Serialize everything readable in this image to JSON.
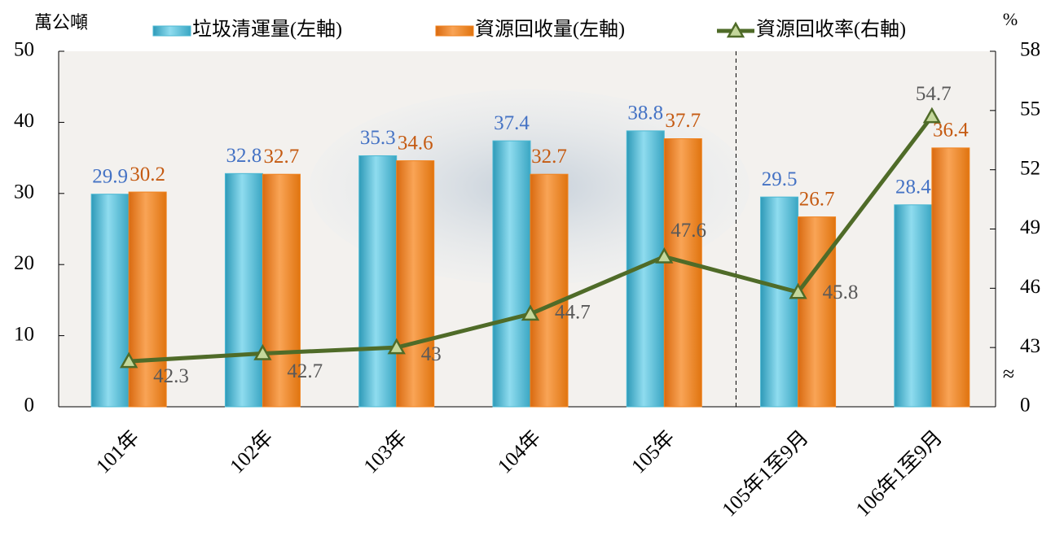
{
  "chart_data": {
    "type": "bar-line",
    "y_label": "萬公噸",
    "y2_label": "%",
    "categories": [
      "101年",
      "102年",
      "103年",
      "104年",
      "105年",
      "105年1至9月",
      "106年1至9月"
    ],
    "series": [
      {
        "name": "垃圾清運量(左軸)",
        "type": "bar",
        "color": "#4bb8d3",
        "label_color": "#4472c4",
        "values": [
          29.9,
          32.8,
          35.3,
          37.4,
          38.8,
          29.5,
          28.4
        ]
      },
      {
        "name": "資源回收量(左軸)",
        "type": "bar",
        "color": "#f0821e",
        "label_color": "#c55a11",
        "values": [
          30.2,
          32.7,
          34.6,
          32.7,
          37.7,
          26.7,
          36.4
        ]
      },
      {
        "name": "資源回收率(右軸)",
        "type": "line",
        "axis": "y2",
        "color": "#4f6b28",
        "label_color": "#595959",
        "values": [
          42.3,
          42.7,
          43.0,
          44.7,
          47.6,
          45.8,
          54.7
        ]
      }
    ],
    "ylim": [
      0,
      50
    ],
    "yticks": [
      0,
      10,
      20,
      30,
      40,
      50
    ],
    "y2lim": [
      40,
      58
    ],
    "y2ticks": [
      {
        "value": 40,
        "label": "0"
      },
      43,
      46,
      49,
      52,
      55,
      58
    ],
    "y2_broken": true
  }
}
